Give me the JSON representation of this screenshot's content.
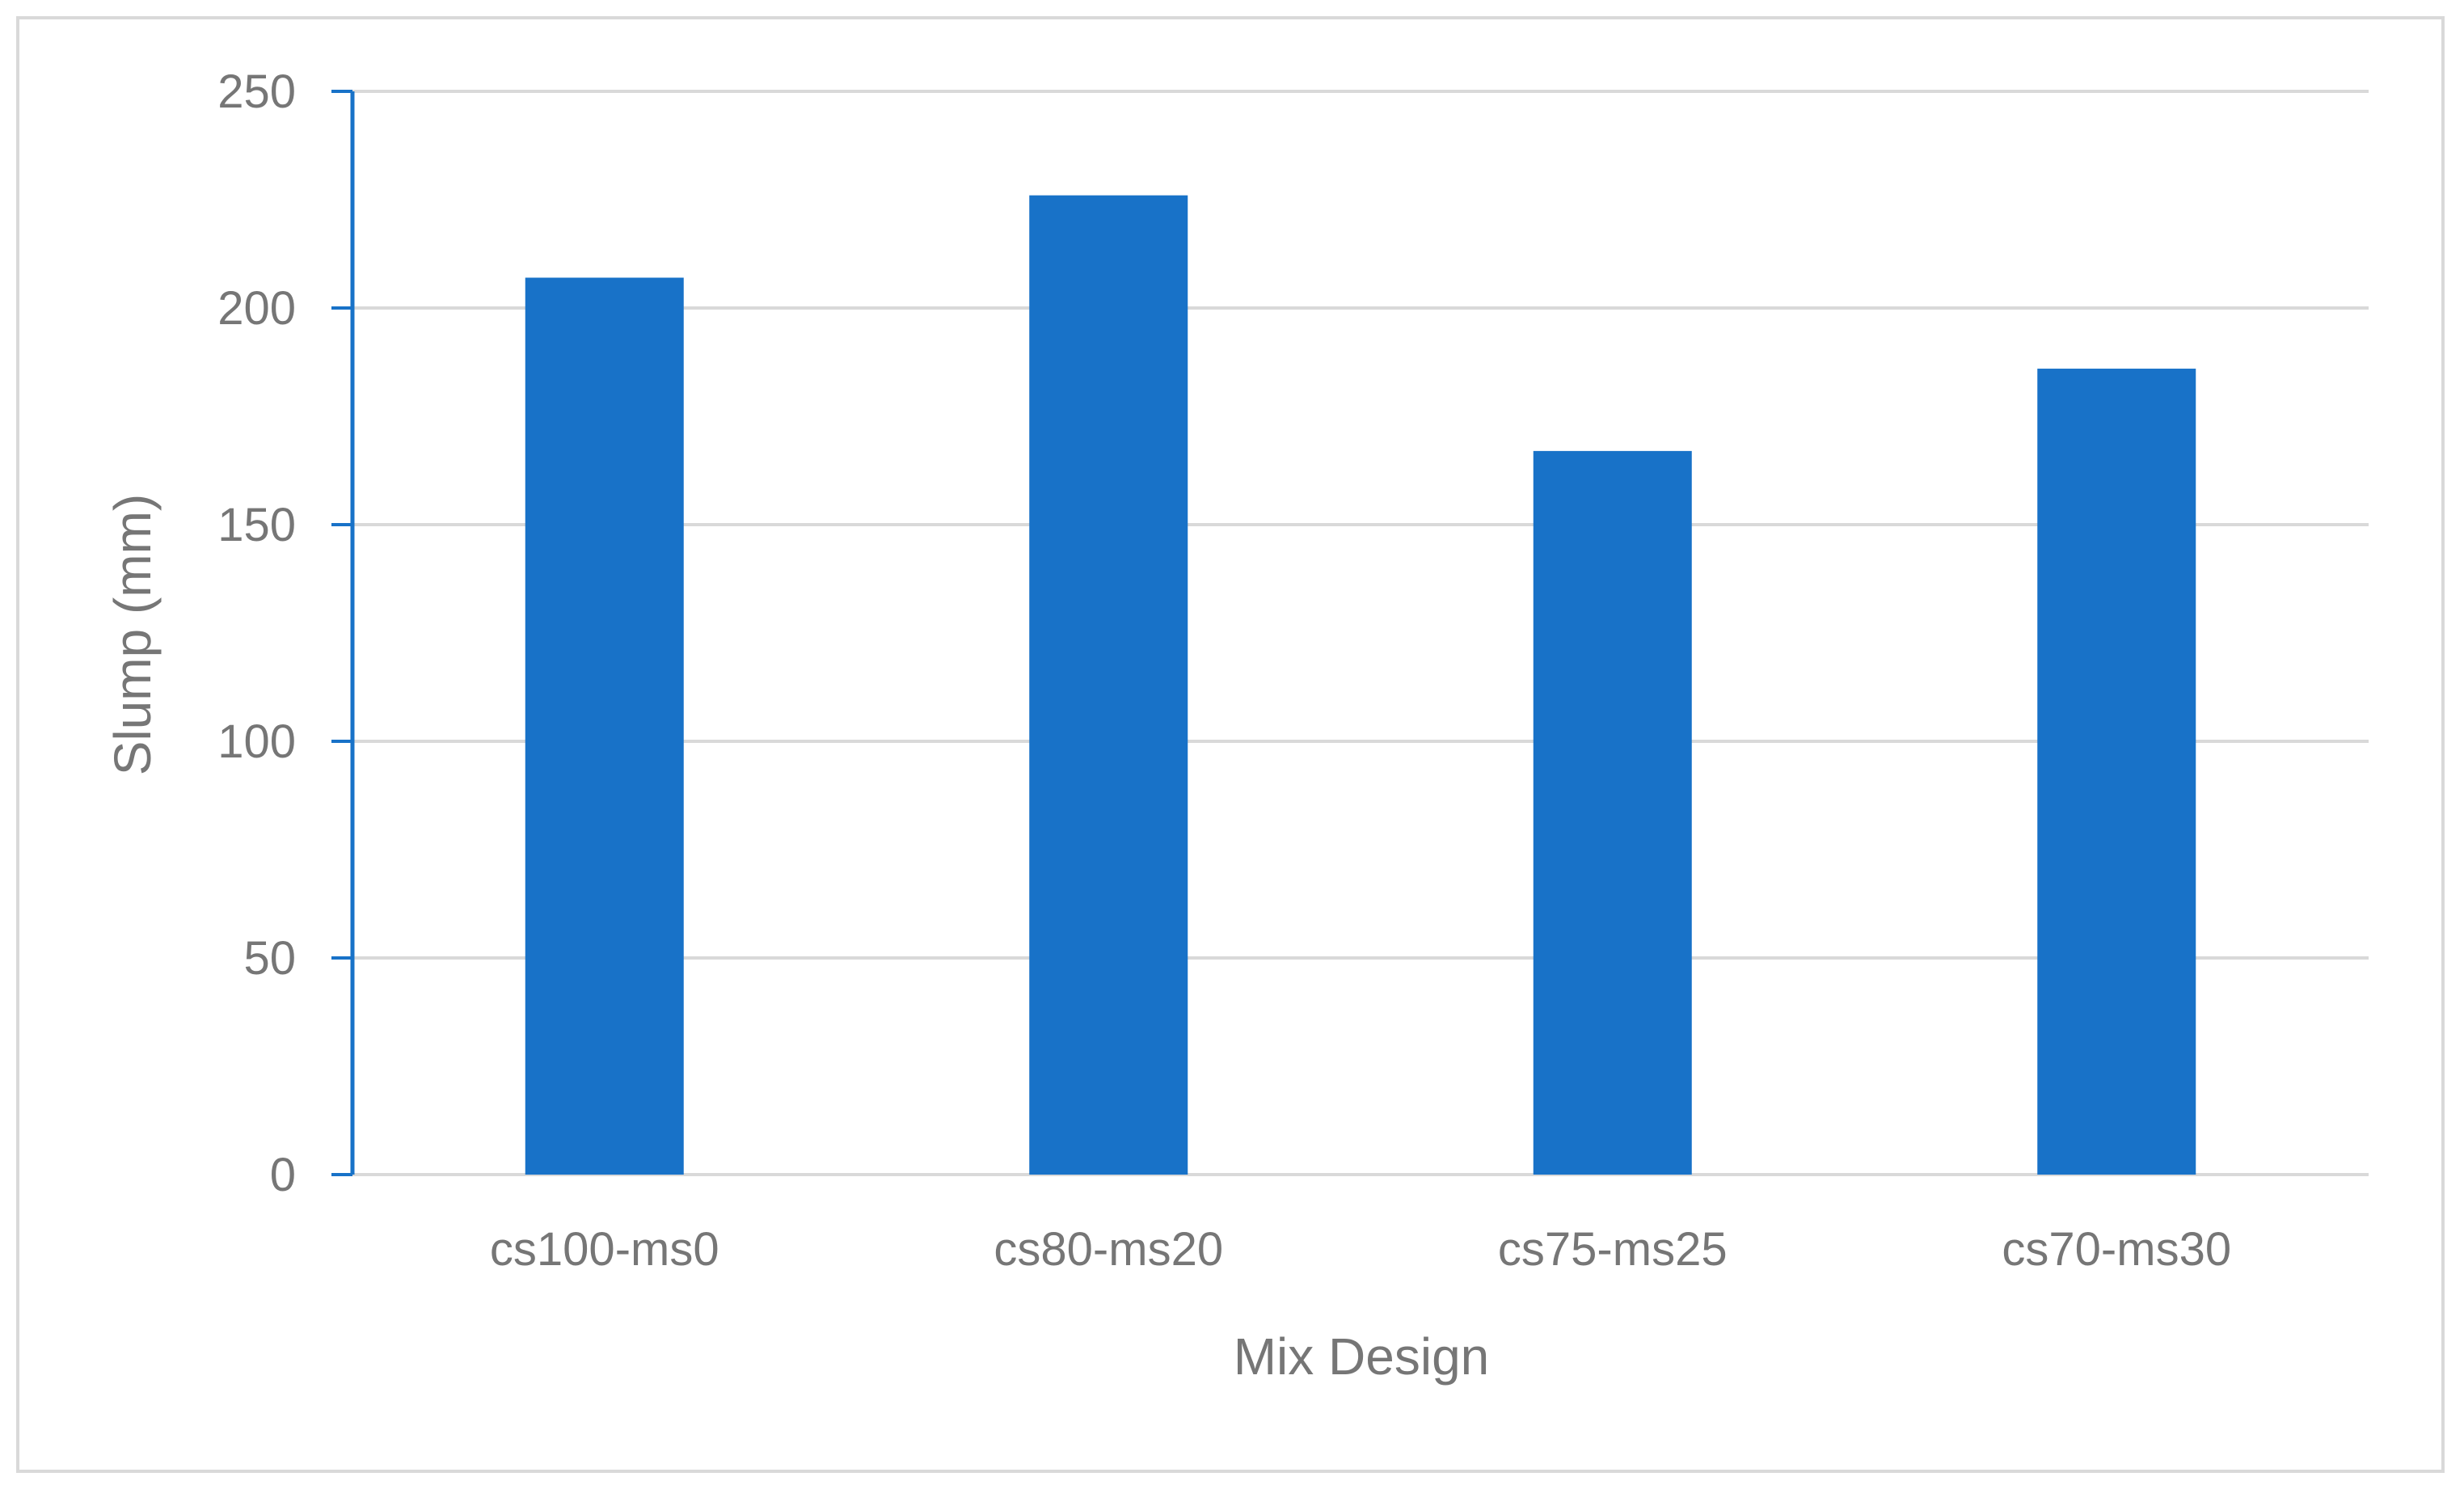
{
  "chart_data": {
    "type": "bar",
    "title": "",
    "xlabel": "Mix Design",
    "ylabel": "Slump (mm)",
    "categories": [
      "cs100-ms0",
      "cs80-ms20",
      "cs75-ms25",
      "cs70-ms30"
    ],
    "values": [
      207,
      226,
      167,
      186
    ],
    "ylim": [
      0,
      250
    ],
    "yticks": [
      0,
      50,
      100,
      150,
      200,
      250
    ],
    "grid": true,
    "legend": "none",
    "colors": {
      "bar": "#1872c8",
      "axis": "#1872c8",
      "gridline": "#d9d9d9",
      "text": "#767676"
    }
  }
}
